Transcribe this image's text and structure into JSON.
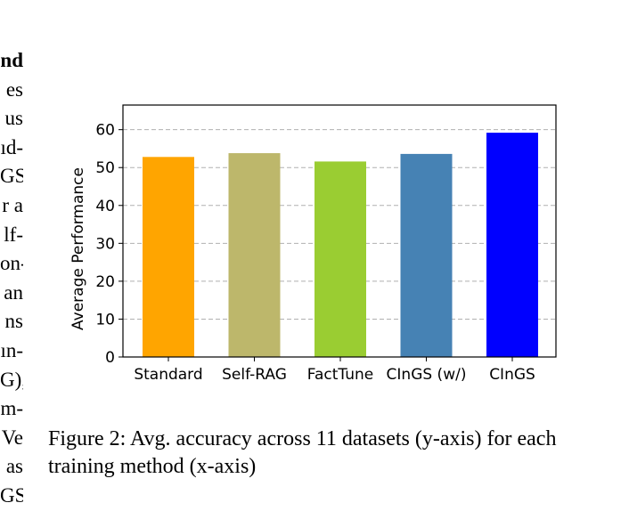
{
  "body_text_fragments": [
    {
      "text": "nd",
      "bold": true
    },
    {
      "text": "es",
      "bold": false
    },
    {
      "text": "us",
      "bold": false
    },
    {
      "text": "ıd-",
      "bold": false
    },
    {
      "text": "GS",
      "bold": false
    },
    {
      "text": "r a",
      "bold": false
    },
    {
      "text": "lf-",
      "bold": false
    },
    {
      "text": "on-",
      "bold": false
    },
    {
      "text": "an",
      "bold": false
    },
    {
      "text": "ns",
      "bold": false
    },
    {
      "text": "ın-",
      "bold": false
    },
    {
      "text": "G),",
      "bold": false
    },
    {
      "text": "m-",
      "bold": false
    },
    {
      "text": "Ve",
      "bold": false
    },
    {
      "text": "as",
      "bold": false
    },
    {
      "text": "GS",
      "bold": false
    }
  ],
  "caption": "Figure 2: Avg. accuracy across 11 datasets (y-axis) for each training method (x-axis)",
  "chart_data": {
    "type": "bar",
    "categories": [
      "Standard",
      "Self-RAG",
      "FactTune",
      "CInGS (w/)",
      "CInGS"
    ],
    "values": [
      52.8,
      53.8,
      51.6,
      53.6,
      59.2
    ],
    "colors": [
      "#FFA500",
      "#BDB76B",
      "#9ACD32",
      "#4682B4",
      "#0000FF"
    ],
    "ylabel": "Average Performance",
    "xlabel": "",
    "ylim": [
      0,
      66.5
    ],
    "yticks": [
      0,
      10,
      20,
      30,
      40,
      50,
      60
    ],
    "grid": "y-dashed"
  }
}
